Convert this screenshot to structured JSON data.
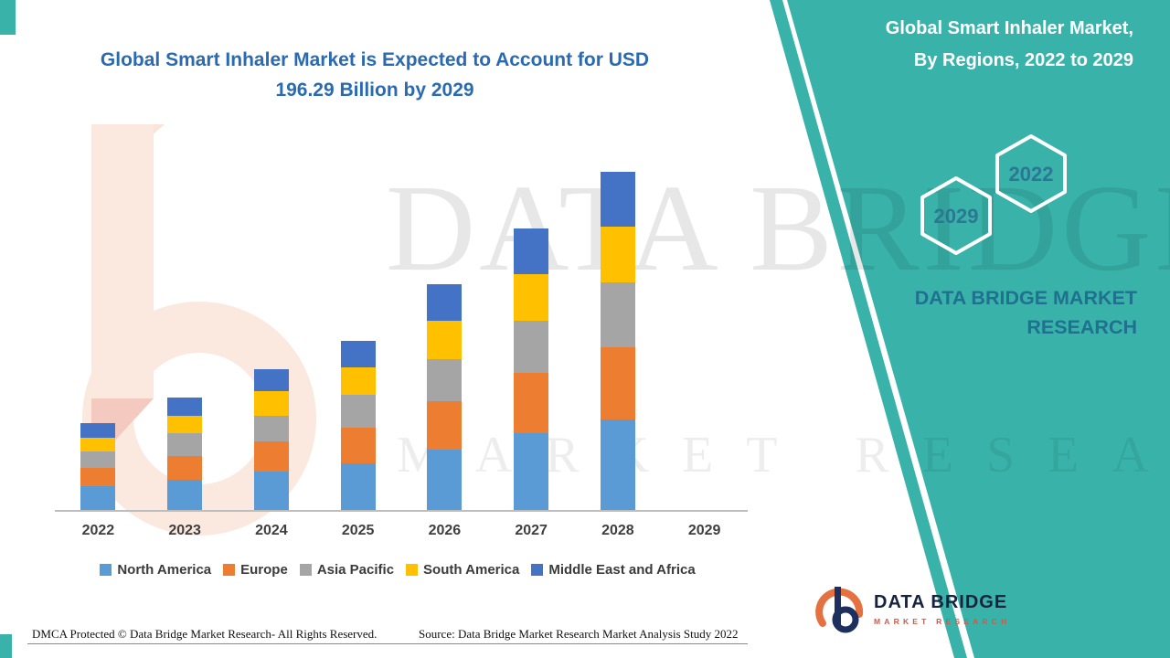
{
  "header": {
    "title_line1": "Global Smart Inhaler Market is Expected to Account for USD",
    "title_line2": "196.29 Billion by 2029"
  },
  "side_panel": {
    "headline_line1": "Global Smart Inhaler Market,",
    "headline_line2": "By Regions, 2022 to 2029",
    "hex_badges": [
      {
        "label": "2029"
      },
      {
        "label": "2022"
      }
    ],
    "brand_line1": "DATA BRIDGE MARKET",
    "brand_line2": "RESEARCH",
    "accent_color": "#39b3aa"
  },
  "watermark": {
    "line1": "DATA BRIDGE",
    "line2": "MARKET RESEARCH"
  },
  "footer": {
    "dmca": "DMCA Protected © Data Bridge Market Research- All Rights Reserved.",
    "source": "Source: Data Bridge Market Research Market Analysis Study 2022"
  },
  "brand_logo": {
    "name": "DATA BRIDGE",
    "subtitle": "MARKET RESEARCH"
  },
  "chart_data": {
    "type": "bar",
    "stacked": true,
    "title": "Global Smart Inhaler Market is Expected to Account for USD 196.29 Billion by 2029",
    "categories": [
      "2022",
      "2023",
      "2024",
      "2025",
      "2026",
      "2027",
      "2028",
      "2029"
    ],
    "series": [
      {
        "name": "North America",
        "color": "#5b9bd5",
        "values": [
          12,
          15,
          19,
          23,
          30,
          38,
          45,
          null
        ]
      },
      {
        "name": "Europe",
        "color": "#ed7d31",
        "values": [
          9,
          12,
          15,
          18,
          24,
          30,
          36,
          null
        ]
      },
      {
        "name": "Asia Pacific",
        "color": "#a5a5a5",
        "values": [
          8,
          11,
          13,
          16,
          21,
          26,
          32,
          null
        ]
      },
      {
        "name": "South America",
        "color": "#ffc000",
        "values": [
          7,
          9,
          12,
          14,
          19,
          23,
          28,
          null
        ]
      },
      {
        "name": "Middle East and Africa",
        "color": "#4472c4",
        "values": [
          7,
          9,
          11,
          13,
          18,
          23,
          27,
          null
        ]
      }
    ],
    "xlabel": "",
    "ylabel": "",
    "unit": "USD Billion (estimated from bar heights; no value axis shown)",
    "projected_2029_total": 196.29,
    "note": "No bar is drawn for 2029; category label only",
    "legend_position": "bottom",
    "grid": false
  }
}
